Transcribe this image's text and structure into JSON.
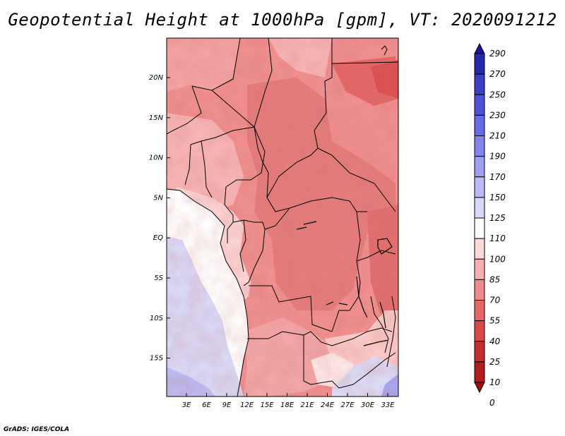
{
  "title": "Geopotential Height at 1000hPa [gpm], VT: 2020091212",
  "credit": "GrADS: IGES/COLA",
  "map": {
    "lat_labels": [
      "20N",
      "15N",
      "10N",
      "5N",
      "EQ",
      "5S",
      "10S",
      "15S"
    ],
    "lon_labels": [
      "3E",
      "6E",
      "9E",
      "12E",
      "15E",
      "18E",
      "21E",
      "24E",
      "27E",
      "30E",
      "33E"
    ]
  },
  "colorbar": {
    "labels": [
      "290",
      "270",
      "250",
      "230",
      "210",
      "190",
      "170",
      "150",
      "125",
      "110",
      "100",
      "85",
      "70",
      "55",
      "40",
      "25",
      "10",
      "0"
    ],
    "colors": [
      "#1e1696",
      "#2a29ad",
      "#3d3ec2",
      "#5050d4",
      "#6a6ae2",
      "#8383ec",
      "#9e9ef2",
      "#babaf6",
      "#d8d8fa",
      "#ffffff",
      "#fed8d8",
      "#f9b0b0",
      "#f08a8a",
      "#e46868",
      "#d94848",
      "#c72e2e",
      "#b01b1b",
      "#991010"
    ]
  }
}
